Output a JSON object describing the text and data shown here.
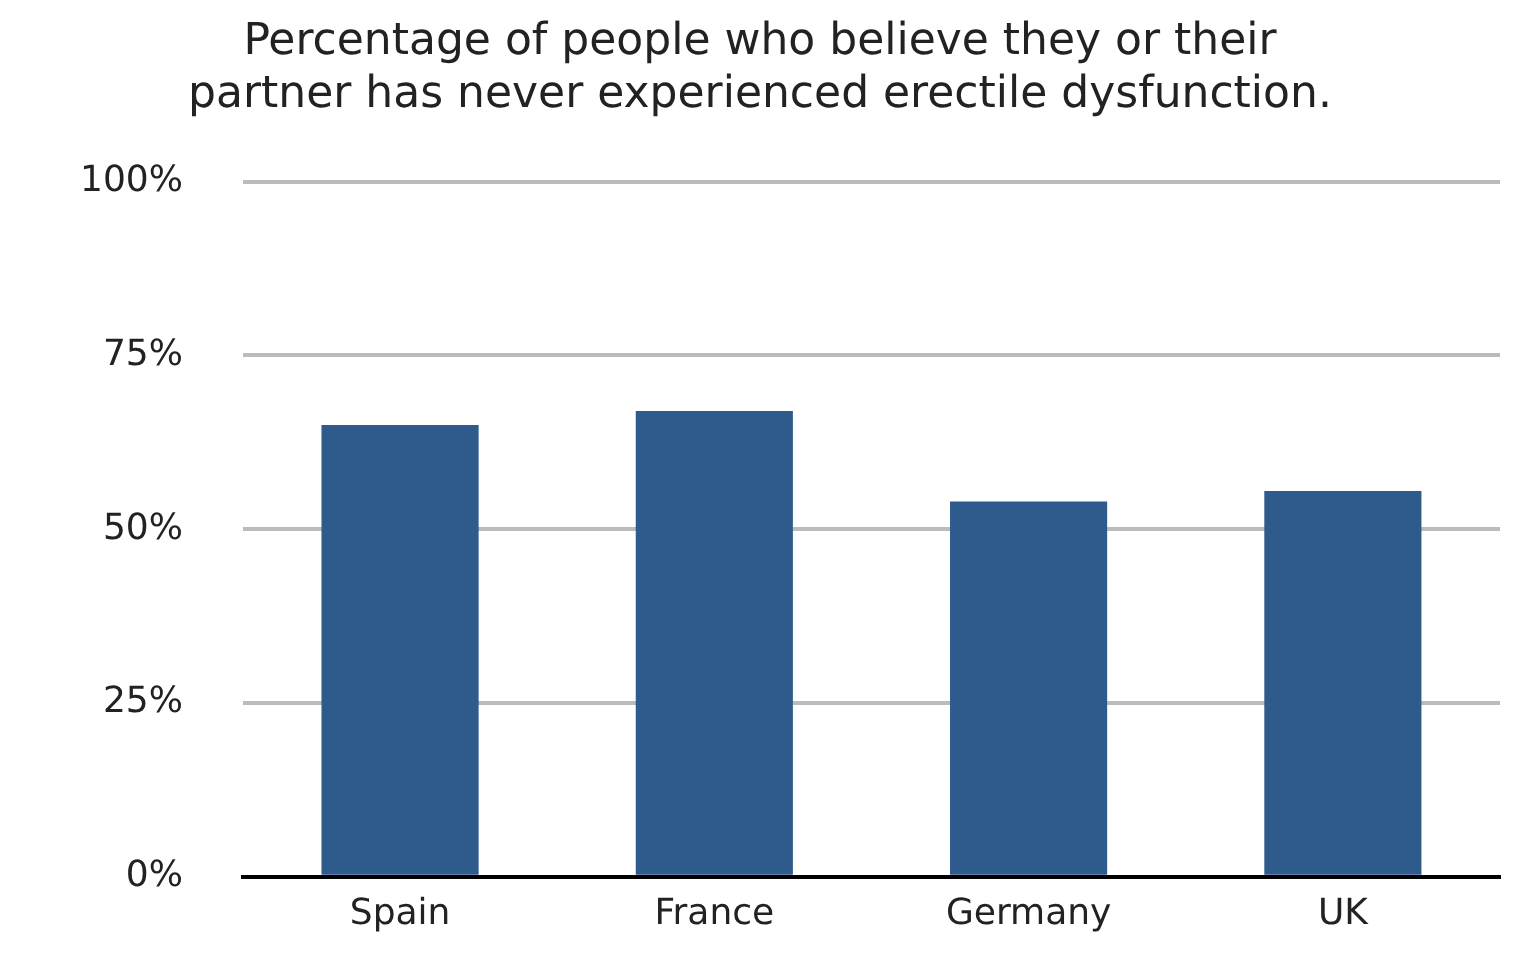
{
  "chart_data": {
    "type": "bar",
    "title": "Percentage of people who believe they or their\npartner has never experienced erectile dysfunction.",
    "categories": [
      "Spain",
      "France",
      "Germany",
      "UK"
    ],
    "values": [
      65,
      67,
      54,
      55.5
    ],
    "color": "#2e5a8c",
    "ylim": [
      0,
      100
    ],
    "yticks": [
      {
        "value": 0,
        "label": "0%"
      },
      {
        "value": 25,
        "label": "25%"
      },
      {
        "value": 50,
        "label": "50%"
      },
      {
        "value": 75,
        "label": "75%"
      },
      {
        "value": 100,
        "label": "100%"
      }
    ],
    "grid": "y"
  }
}
